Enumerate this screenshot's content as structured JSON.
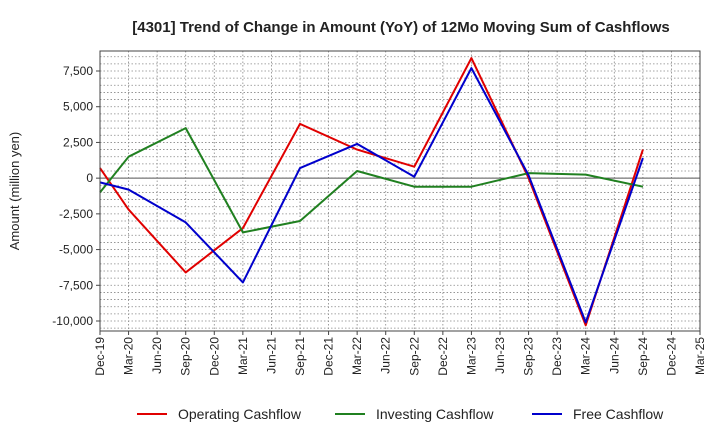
{
  "chart_data": {
    "type": "line",
    "title": "[4301]  Trend of Change in Amount (YoY) of 12Mo Moving Sum of Cashflows",
    "xlabel": "",
    "ylabel": "Amount (million yen)",
    "ylim": [
      -10700,
      8900
    ],
    "yticks": [
      7500,
      5000,
      2500,
      0,
      -2500,
      -5000,
      -7500,
      -10000
    ],
    "ytick_labels": [
      "7,500",
      "5,000",
      "2,500",
      "0",
      "-2,500",
      "-5,000",
      "-7,500",
      "-10,000"
    ],
    "categories": [
      "Dec-19",
      "Mar-20",
      "Jun-20",
      "Sep-20",
      "Dec-20",
      "Mar-21",
      "Jun-21",
      "Sep-21",
      "Dec-21",
      "Mar-22",
      "Jun-22",
      "Sep-22",
      "Dec-22",
      "Mar-23",
      "Jun-23",
      "Sep-23",
      "Dec-23",
      "Mar-24",
      "Jun-24",
      "Sep-24",
      "Dec-24",
      "Mar-25"
    ],
    "grid": true,
    "legend_position": "bottom",
    "series": [
      {
        "name": "Operating Cashflow",
        "color": "#e00000",
        "points": [
          [
            0,
            700
          ],
          [
            1,
            -2200
          ],
          [
            3,
            -6600
          ],
          [
            5,
            -3500
          ],
          [
            7,
            3800
          ],
          [
            9,
            2000
          ],
          [
            11,
            800
          ],
          [
            13,
            8400
          ],
          [
            15,
            0
          ],
          [
            17,
            -10300
          ],
          [
            19,
            2000
          ]
        ]
      },
      {
        "name": "Investing Cashflow",
        "color": "#208020",
        "points": [
          [
            0,
            -1000
          ],
          [
            1,
            1500
          ],
          [
            3,
            3500
          ],
          [
            5,
            -3800
          ],
          [
            7,
            -3000
          ],
          [
            9,
            500
          ],
          [
            11,
            -600
          ],
          [
            13,
            -600
          ],
          [
            15,
            350
          ],
          [
            17,
            250
          ],
          [
            19,
            -600
          ]
        ]
      },
      {
        "name": "Free Cashflow",
        "color": "#0000cc",
        "points": [
          [
            0,
            -300
          ],
          [
            1,
            -800
          ],
          [
            3,
            -3100
          ],
          [
            5,
            -7300
          ],
          [
            7,
            700
          ],
          [
            9,
            2400
          ],
          [
            11,
            100
          ],
          [
            13,
            7700
          ],
          [
            15,
            200
          ],
          [
            17,
            -10100
          ],
          [
            19,
            1400
          ]
        ]
      }
    ]
  }
}
